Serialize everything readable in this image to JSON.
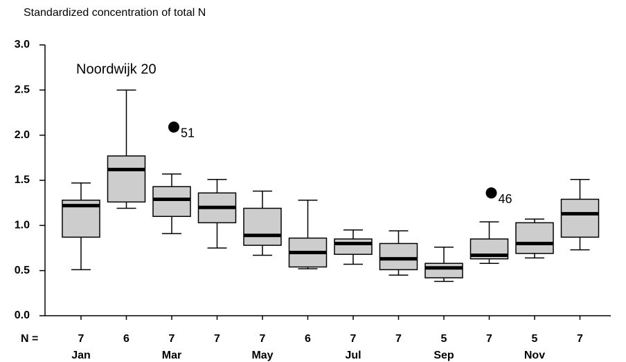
{
  "chart_data": {
    "type": "box",
    "title": "Standardized concentration of total N",
    "annotation": "Noordwijk 20",
    "categories": [
      "Jan",
      null,
      "Mar",
      null,
      "May",
      null,
      "Jul",
      null,
      "Sep",
      null,
      "Nov",
      null
    ],
    "n_label": "N =",
    "n": [
      7,
      6,
      7,
      7,
      7,
      6,
      7,
      7,
      5,
      7,
      5,
      7
    ],
    "boxes": [
      {
        "whislo": 0.51,
        "q1": 0.87,
        "med": 1.22,
        "q3": 1.28,
        "whishi": 1.47,
        "fliers": []
      },
      {
        "whislo": 1.19,
        "q1": 1.26,
        "med": 1.62,
        "q3": 1.77,
        "whishi": 2.5,
        "fliers": []
      },
      {
        "whislo": 0.91,
        "q1": 1.1,
        "med": 1.29,
        "q3": 1.43,
        "whishi": 1.57,
        "fliers": [
          {
            "value": 2.09,
            "label": "51"
          }
        ]
      },
      {
        "whislo": 0.75,
        "q1": 1.03,
        "med": 1.2,
        "q3": 1.36,
        "whishi": 1.51,
        "fliers": []
      },
      {
        "whislo": 0.67,
        "q1": 0.78,
        "med": 0.89,
        "q3": 1.19,
        "whishi": 1.38,
        "fliers": []
      },
      {
        "whislo": 0.52,
        "q1": 0.54,
        "med": 0.7,
        "q3": 0.86,
        "whishi": 1.28,
        "fliers": []
      },
      {
        "whislo": 0.57,
        "q1": 0.68,
        "med": 0.8,
        "q3": 0.85,
        "whishi": 0.95,
        "fliers": []
      },
      {
        "whislo": 0.45,
        "q1": 0.51,
        "med": 0.63,
        "q3": 0.8,
        "whishi": 0.94,
        "fliers": []
      },
      {
        "whislo": 0.38,
        "q1": 0.42,
        "med": 0.53,
        "q3": 0.58,
        "whishi": 0.76,
        "fliers": []
      },
      {
        "whislo": 0.58,
        "q1": 0.63,
        "med": 0.67,
        "q3": 0.85,
        "whishi": 1.04,
        "fliers": [
          {
            "value": 1.36,
            "label": "46"
          }
        ]
      },
      {
        "whislo": 0.64,
        "q1": 0.69,
        "med": 0.8,
        "q3": 1.03,
        "whishi": 1.07,
        "fliers": []
      },
      {
        "whislo": 0.73,
        "q1": 0.87,
        "med": 1.13,
        "q3": 1.29,
        "whishi": 1.51,
        "fliers": []
      }
    ],
    "color": "#cdcdcd",
    "ylim": [
      0,
      3
    ],
    "yticks": [
      {
        "value": 0,
        "label": "0.0"
      },
      0.5,
      {
        "value": 1,
        "label": "1.0"
      },
      1.5,
      {
        "value": 2,
        "label": "2.0"
      },
      2.5,
      {
        "value": 3,
        "label": "3.0"
      }
    ]
  }
}
